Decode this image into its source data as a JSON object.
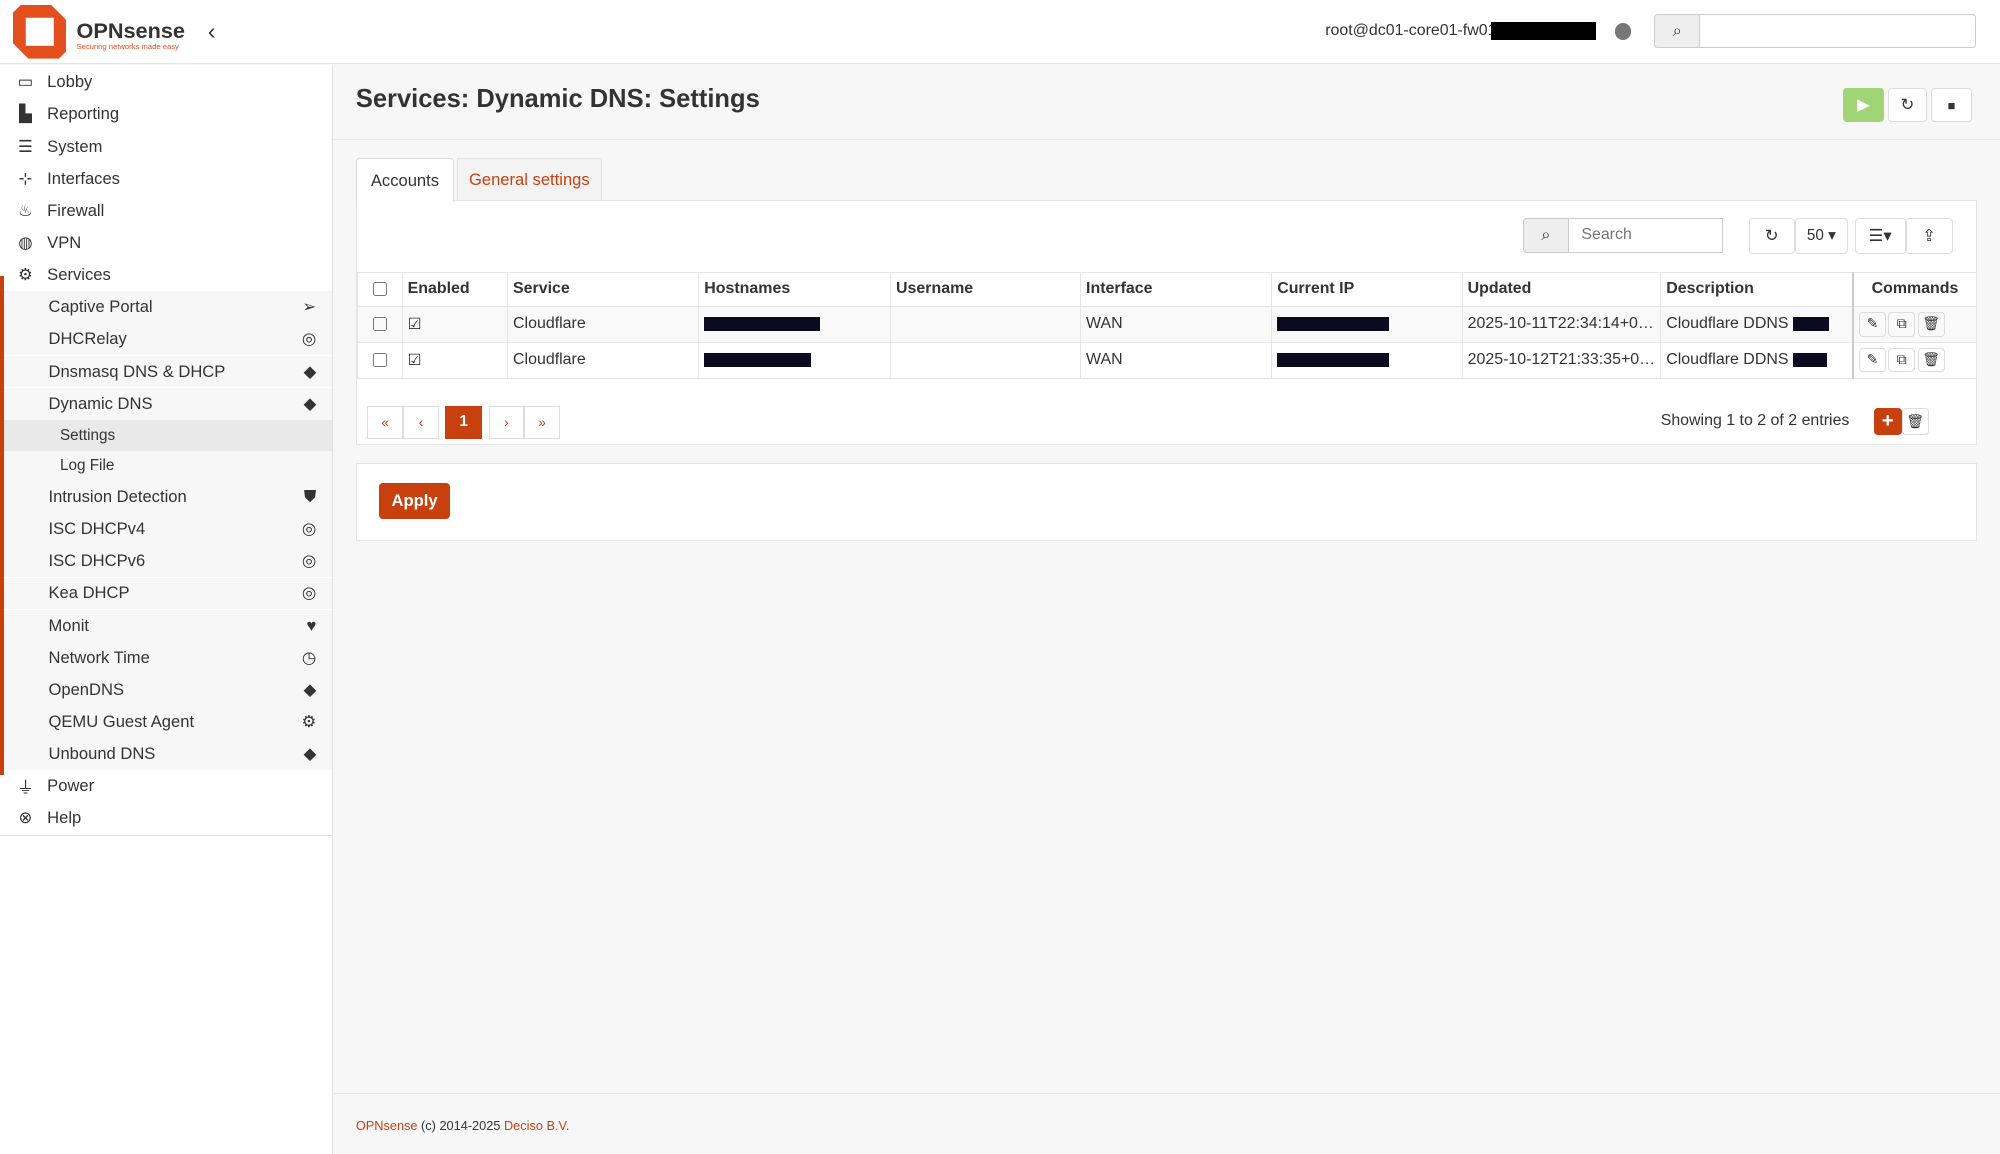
{
  "brand": {
    "name": "OPNsense",
    "tagline": "Securing networks made easy",
    "accent": "#d94f00"
  },
  "header": {
    "user": "root@dc01-core01-fw01",
    "search_placeholder": ""
  },
  "sidebar": {
    "items": [
      {
        "label": "Lobby",
        "icon": "laptop-icon"
      },
      {
        "label": "Reporting",
        "icon": "chart-icon"
      },
      {
        "label": "System",
        "icon": "server-icon"
      },
      {
        "label": "Interfaces",
        "icon": "sitemap-icon"
      },
      {
        "label": "Firewall",
        "icon": "fire-icon"
      },
      {
        "label": "VPN",
        "icon": "globe-icon"
      },
      {
        "label": "Services",
        "icon": "gear-icon"
      }
    ],
    "services": [
      {
        "label": "Captive Portal",
        "icon": "paper-plane-icon"
      },
      {
        "label": "DHCRelay",
        "icon": "bullseye-icon"
      },
      {
        "label": "Dnsmasq DNS & DHCP",
        "icon": "tags-icon"
      },
      {
        "label": "Dynamic DNS",
        "icon": "tags-icon"
      },
      {
        "label": "Intrusion Detection",
        "icon": "shield-icon"
      },
      {
        "label": "ISC DHCPv4",
        "icon": "bullseye-icon"
      },
      {
        "label": "ISC DHCPv6",
        "icon": "bullseye-icon"
      },
      {
        "label": "Kea DHCP",
        "icon": "bullseye-icon"
      },
      {
        "label": "Monit",
        "icon": "heartbeat-icon"
      },
      {
        "label": "Network Time",
        "icon": "clock-icon"
      },
      {
        "label": "OpenDNS",
        "icon": "tags-icon"
      },
      {
        "label": "QEMU Guest Agent",
        "icon": "gear-icon"
      },
      {
        "label": "Unbound DNS",
        "icon": "tags-icon"
      }
    ],
    "ddns_sub": [
      {
        "label": "Settings"
      },
      {
        "label": "Log File"
      }
    ],
    "bottom": [
      {
        "label": "Power",
        "icon": "plug-icon"
      },
      {
        "label": "Help",
        "icon": "lifebuoy-icon"
      }
    ]
  },
  "page": {
    "title": "Services: Dynamic DNS: Settings"
  },
  "tabs": [
    {
      "label": "Accounts",
      "active": true
    },
    {
      "label": "General settings",
      "active": false
    }
  ],
  "grid": {
    "search_placeholder": "Search",
    "page_size": "50",
    "columns": [
      "Enabled",
      "Service",
      "Hostnames",
      "Username",
      "Interface",
      "Current IP",
      "Updated",
      "Description",
      "Commands"
    ],
    "rows": [
      {
        "enabled": true,
        "service": "Cloudflare",
        "username": "",
        "interface": "WAN",
        "updated": "2025-10-11T22:34:14+0…",
        "description": "Cloudflare DDNS"
      },
      {
        "enabled": true,
        "service": "Cloudflare",
        "username": "",
        "interface": "WAN",
        "updated": "2025-10-12T21:33:35+0…",
        "description": "Cloudflare DDNS"
      }
    ],
    "pagination": {
      "first": "«",
      "prev": "‹",
      "current": "1",
      "next": "›",
      "last": "»"
    },
    "info": "Showing 1 to 2 of 2 entries"
  },
  "apply_label": "Apply",
  "footer": {
    "product": "OPNsense",
    "copy": " (c) 2014-2025 ",
    "company": "Deciso B.V."
  }
}
